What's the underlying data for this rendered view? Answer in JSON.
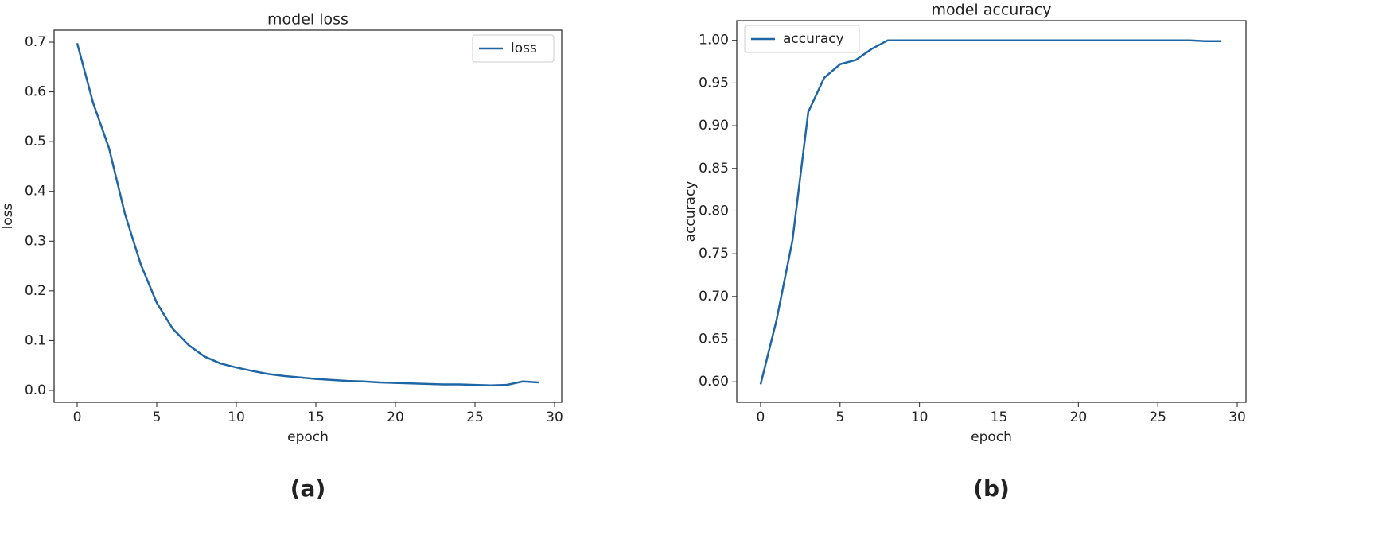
{
  "chart_data": [
    {
      "type": "line",
      "title": "model loss",
      "xlabel": "epoch",
      "ylabel": "loss",
      "panel_label": "(a)",
      "x": [
        0,
        1,
        2,
        3,
        4,
        5,
        6,
        7,
        8,
        9,
        10,
        11,
        12,
        13,
        14,
        15,
        16,
        17,
        18,
        19,
        20,
        21,
        22,
        23,
        24,
        25,
        26,
        27,
        28,
        29
      ],
      "series": [
        {
          "name": "loss",
          "color": "#1f66a6",
          "values": [
            0.698,
            0.578,
            0.487,
            0.355,
            0.253,
            0.176,
            0.124,
            0.091,
            0.068,
            0.054,
            0.046,
            0.039,
            0.033,
            0.029,
            0.026,
            0.023,
            0.021,
            0.019,
            0.018,
            0.016,
            0.015,
            0.014,
            0.013,
            0.012,
            0.012,
            0.011,
            0.01,
            0.011,
            0.018,
            0.016
          ]
        }
      ],
      "xlim": [
        -1.45,
        30.45
      ],
      "xticks": [
        0,
        5,
        10,
        15,
        20,
        25,
        30
      ],
      "ylim": [
        -0.024,
        0.724
      ],
      "yticks": [
        {
          "value": 0,
          "label": "0.0"
        },
        0.1,
        0.2,
        0.3,
        0.4,
        0.5,
        0.6,
        0.7
      ],
      "grid": false,
      "legend": "upper right"
    },
    {
      "type": "line",
      "title": "model accuracy",
      "xlabel": "epoch",
      "ylabel": "accuracy",
      "panel_label": "(b)",
      "x": [
        0,
        1,
        2,
        3,
        4,
        5,
        6,
        7,
        8,
        9,
        10,
        11,
        12,
        13,
        14,
        15,
        16,
        17,
        18,
        19,
        20,
        21,
        22,
        23,
        24,
        25,
        26,
        27,
        28,
        29
      ],
      "series": [
        {
          "name": "accuracy",
          "color": "#1f66a6",
          "values": [
            0.597,
            0.672,
            0.765,
            0.916,
            0.956,
            0.972,
            0.977,
            0.99,
            1.0,
            1.0,
            1.0,
            1.0,
            1.0,
            1.0,
            1.0,
            1.0,
            1.0,
            1.0,
            1.0,
            1.0,
            1.0,
            1.0,
            1.0,
            1.0,
            1.0,
            1.0,
            1.0,
            1.0,
            0.999,
            0.999
          ]
        }
      ],
      "xlim": [
        -1.5,
        30.55
      ],
      "xticks": [
        0,
        5,
        10,
        15,
        20,
        25,
        30
      ],
      "ylim": [
        0.576,
        1.023
      ],
      "yticks": [
        {
          "value": 0.6,
          "label": "0.60"
        },
        0.65,
        {
          "value": 0.7,
          "label": "0.70"
        },
        0.75,
        {
          "value": 0.8,
          "label": "0.80"
        },
        0.85,
        {
          "value": 0.9,
          "label": "0.90"
        },
        0.95,
        {
          "value": 1.0,
          "label": "1.00"
        }
      ],
      "grid": false,
      "legend": "upper left"
    }
  ]
}
